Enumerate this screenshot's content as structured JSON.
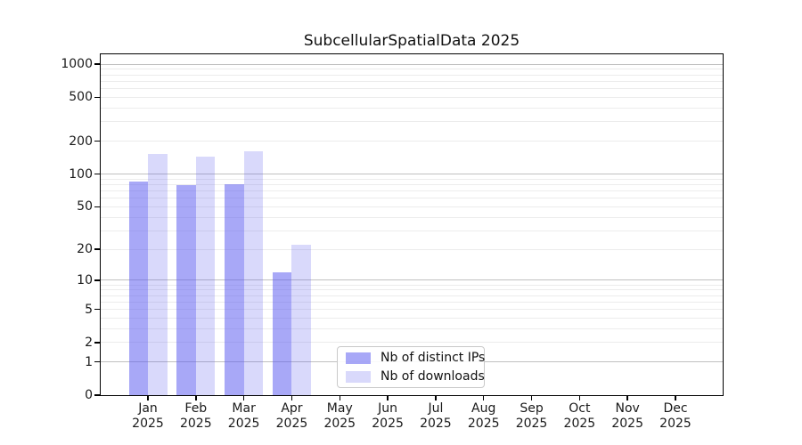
{
  "chart_data": {
    "type": "bar",
    "title": "SubcellularSpatialData 2025",
    "categories": [
      "Jan 2025",
      "Feb 2025",
      "Mar 2025",
      "Apr 2025",
      "May 2025",
      "Jun 2025",
      "Jul 2025",
      "Aug 2025",
      "Sep 2025",
      "Oct 2025",
      "Nov 2025",
      "Dec 2025"
    ],
    "series": [
      {
        "name": "Nb of distinct IPs",
        "color": "rgba(90,90,239,0.53)",
        "values": [
          86,
          79,
          80,
          12,
          0,
          0,
          0,
          0,
          0,
          0,
          0,
          0
        ]
      },
      {
        "name": "Nb of downloads",
        "color": "rgba(90,90,239,0.23)",
        "values": [
          152,
          145,
          162,
          22,
          0,
          0,
          0,
          0,
          0,
          0,
          0,
          0
        ]
      }
    ],
    "xlabel": "",
    "ylabel": "",
    "yscale": "log1p",
    "ylim": [
      0,
      1230
    ],
    "yticks": [
      1000,
      500,
      200,
      100,
      50,
      20,
      10,
      5,
      2,
      1,
      0
    ],
    "grid": {
      "on": true,
      "major_lines": [
        1,
        10,
        100,
        1000
      ],
      "minor_multiples_per_decade": [
        2,
        3,
        4,
        5,
        6,
        7,
        8,
        9
      ],
      "major_color": "#c0c0c0",
      "minor_color": "#ececec"
    },
    "legend_position": "lower center-left inside plot"
  },
  "colors": {
    "background": "#ffffff",
    "axis": "#000000",
    "text": "#1a1a1a"
  }
}
